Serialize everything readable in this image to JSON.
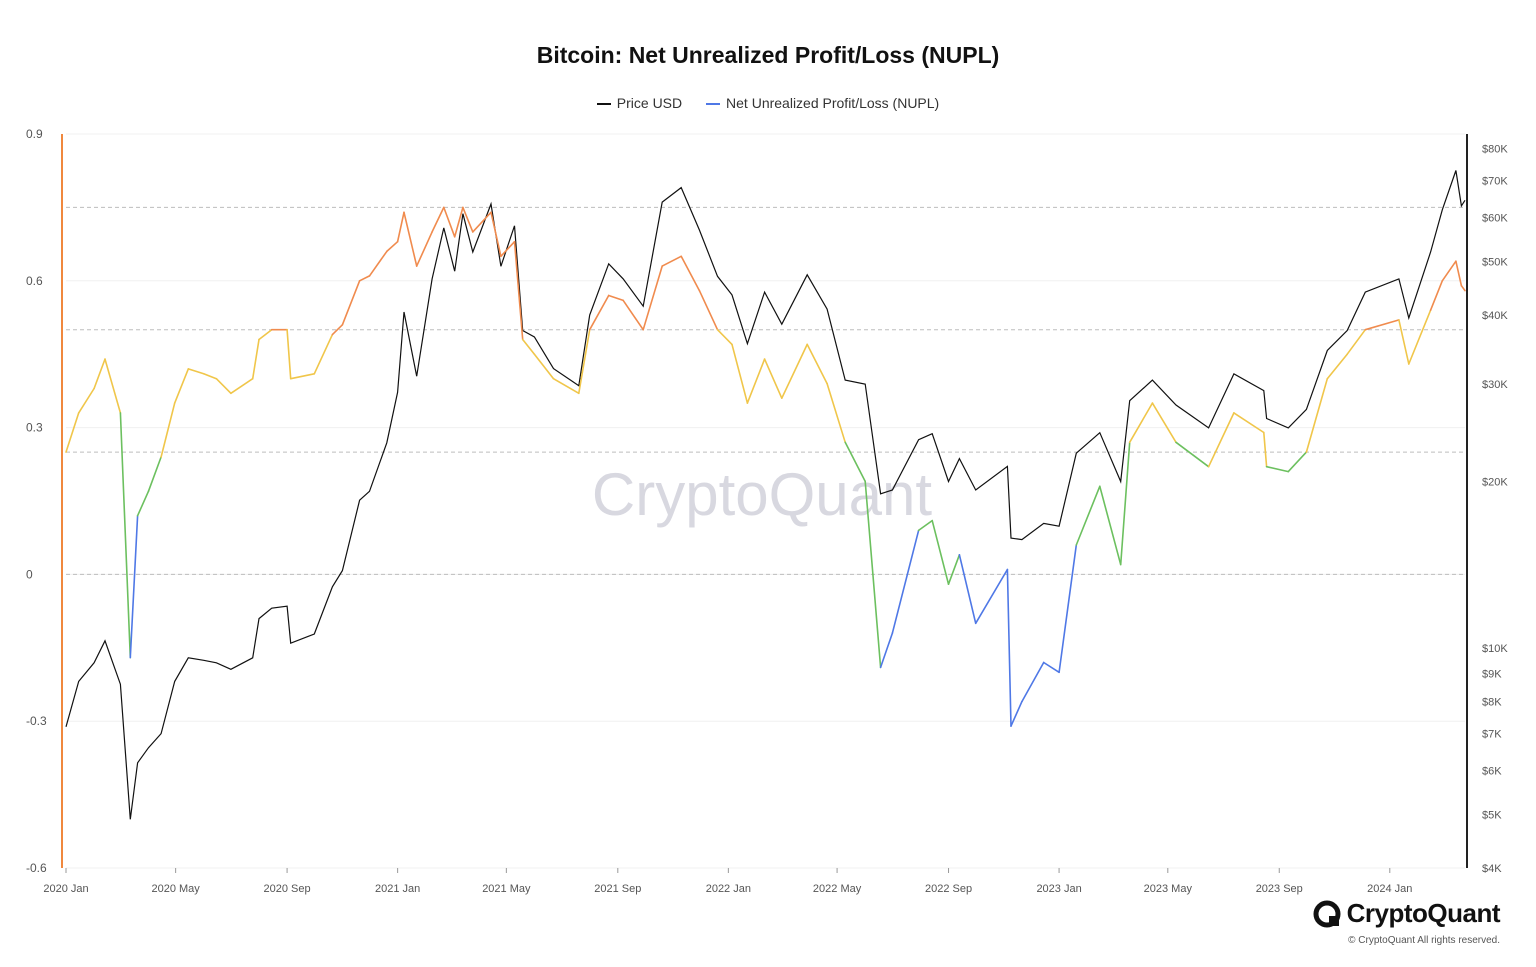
{
  "chart_data": {
    "type": "line",
    "title": "Bitcoin: Net Unrealized Profit/Loss (NUPL)",
    "legend": [
      "Price USD",
      "Net Unrealized Profit/Loss (NUPL)"
    ],
    "legend_placement": "top-center",
    "x_axis": {
      "tick_labels": [
        "2020 Jan",
        "2020 May",
        "2020 Sep",
        "2021 Jan",
        "2021 May",
        "2021 Sep",
        "2022 Jan",
        "2022 May",
        "2022 Sep",
        "2023 Jan",
        "2023 May",
        "2023 Sep",
        "2024 Jan"
      ],
      "range": [
        "2020-01-01",
        "2024-03-24"
      ]
    },
    "y_left": {
      "tick_labels": [
        "0.9",
        "0.6",
        "0.3",
        "0",
        "-0.3",
        "-0.6"
      ],
      "range": [
        -0.6,
        0.9
      ]
    },
    "y_right": {
      "scale": "log",
      "tick_labels": [
        "$80K",
        "$70K",
        "$60K",
        "$50K",
        "$40K",
        "$30K",
        "$20K",
        "$10K",
        "$9K",
        "$8K",
        "$7K",
        "$6K",
        "$5K",
        "$4K"
      ],
      "range": [
        4000,
        85000
      ]
    },
    "reference_lines_nupl": [
      0.75,
      0.5,
      0.25,
      0
    ],
    "zone_colors": {
      "capitulation": "#4f78e6",
      "hope_fear": "#6cc05f",
      "optimism_anxiety": "#f0c64a",
      "belief_denial": "#f08b4e",
      "euphoria_greed": "#f08b4e"
    },
    "series": [
      {
        "name": "Price USD",
        "color": "#111111",
        "points": [
          [
            "2020-01-01",
            7200
          ],
          [
            "2020-01-15",
            8700
          ],
          [
            "2020-02-01",
            9400
          ],
          [
            "2020-02-13",
            10300
          ],
          [
            "2020-03-01",
            8600
          ],
          [
            "2020-03-12",
            4900
          ],
          [
            "2020-03-20",
            6200
          ],
          [
            "2020-04-01",
            6600
          ],
          [
            "2020-04-15",
            7000
          ],
          [
            "2020-04-30",
            8700
          ],
          [
            "2020-05-15",
            9600
          ],
          [
            "2020-06-01",
            9500
          ],
          [
            "2020-06-15",
            9400
          ],
          [
            "2020-07-01",
            9150
          ],
          [
            "2020-07-25",
            9600
          ],
          [
            "2020-08-01",
            11300
          ],
          [
            "2020-08-15",
            11800
          ],
          [
            "2020-09-01",
            11900
          ],
          [
            "2020-09-05",
            10200
          ],
          [
            "2020-10-01",
            10600
          ],
          [
            "2020-10-21",
            12900
          ],
          [
            "2020-11-01",
            13800
          ],
          [
            "2020-11-20",
            18500
          ],
          [
            "2020-12-01",
            19200
          ],
          [
            "2020-12-20",
            23500
          ],
          [
            "2021-01-01",
            29000
          ],
          [
            "2021-01-08",
            40500
          ],
          [
            "2021-01-22",
            31000
          ],
          [
            "2021-02-08",
            46500
          ],
          [
            "2021-02-21",
            57500
          ],
          [
            "2021-03-05",
            48000
          ],
          [
            "2021-03-14",
            61000
          ],
          [
            "2021-03-25",
            52000
          ],
          [
            "2021-04-14",
            63500
          ],
          [
            "2021-04-25",
            49000
          ],
          [
            "2021-05-10",
            58000
          ],
          [
            "2021-05-19",
            37500
          ],
          [
            "2021-06-01",
            36500
          ],
          [
            "2021-06-22",
            32000
          ],
          [
            "2021-07-20",
            29800
          ],
          [
            "2021-08-01",
            40000
          ],
          [
            "2021-08-22",
            49500
          ],
          [
            "2021-09-07",
            46500
          ],
          [
            "2021-09-29",
            41500
          ],
          [
            "2021-10-20",
            64000
          ],
          [
            "2021-11-10",
            68000
          ],
          [
            "2021-11-30",
            57000
          ],
          [
            "2021-12-20",
            47000
          ],
          [
            "2022-01-05",
            43500
          ],
          [
            "2022-01-22",
            35500
          ],
          [
            "2022-02-10",
            44000
          ],
          [
            "2022-03-01",
            38500
          ],
          [
            "2022-03-29",
            47300
          ],
          [
            "2022-04-20",
            41000
          ],
          [
            "2022-05-10",
            30500
          ],
          [
            "2022-06-01",
            30000
          ],
          [
            "2022-06-18",
            19000
          ],
          [
            "2022-07-01",
            19300
          ],
          [
            "2022-07-30",
            23800
          ],
          [
            "2022-08-14",
            24400
          ],
          [
            "2022-09-01",
            20000
          ],
          [
            "2022-09-13",
            22000
          ],
          [
            "2022-10-01",
            19300
          ],
          [
            "2022-11-05",
            21300
          ],
          [
            "2022-11-09",
            15800
          ],
          [
            "2022-11-21",
            15700
          ],
          [
            "2022-12-15",
            16800
          ],
          [
            "2023-01-01",
            16600
          ],
          [
            "2023-01-20",
            22500
          ],
          [
            "2023-02-15",
            24500
          ],
          [
            "2023-03-10",
            20000
          ],
          [
            "2023-03-20",
            28000
          ],
          [
            "2023-04-14",
            30500
          ],
          [
            "2023-05-10",
            27500
          ],
          [
            "2023-06-15",
            25000
          ],
          [
            "2023-07-13",
            31300
          ],
          [
            "2023-08-15",
            29200
          ],
          [
            "2023-08-18",
            26000
          ],
          [
            "2023-09-11",
            25000
          ],
          [
            "2023-10-01",
            27000
          ],
          [
            "2023-10-24",
            34500
          ],
          [
            "2023-11-15",
            37500
          ],
          [
            "2023-12-05",
            44000
          ],
          [
            "2024-01-11",
            46500
          ],
          [
            "2024-01-22",
            39500
          ],
          [
            "2024-02-15",
            52000
          ],
          [
            "2024-02-28",
            62000
          ],
          [
            "2024-03-14",
            73000
          ],
          [
            "2024-03-20",
            63000
          ],
          [
            "2024-03-24",
            64500
          ]
        ]
      },
      {
        "name": "Net Unrealized Profit/Loss (NUPL)",
        "color": "#4f78e6",
        "points": [
          [
            "2020-01-01",
            0.25
          ],
          [
            "2020-01-15",
            0.33
          ],
          [
            "2020-02-01",
            0.38
          ],
          [
            "2020-02-13",
            0.44
          ],
          [
            "2020-03-01",
            0.33
          ],
          [
            "2020-03-12",
            -0.17
          ],
          [
            "2020-03-20",
            0.12
          ],
          [
            "2020-04-01",
            0.17
          ],
          [
            "2020-04-15",
            0.24
          ],
          [
            "2020-04-30",
            0.35
          ],
          [
            "2020-05-15",
            0.42
          ],
          [
            "2020-06-01",
            0.41
          ],
          [
            "2020-06-15",
            0.4
          ],
          [
            "2020-07-01",
            0.37
          ],
          [
            "2020-07-25",
            0.4
          ],
          [
            "2020-08-01",
            0.48
          ],
          [
            "2020-08-15",
            0.5
          ],
          [
            "2020-09-01",
            0.5
          ],
          [
            "2020-09-05",
            0.4
          ],
          [
            "2020-10-01",
            0.41
          ],
          [
            "2020-10-21",
            0.49
          ],
          [
            "2020-11-01",
            0.51
          ],
          [
            "2020-11-20",
            0.6
          ],
          [
            "2020-12-01",
            0.61
          ],
          [
            "2020-12-20",
            0.66
          ],
          [
            "2021-01-01",
            0.68
          ],
          [
            "2021-01-08",
            0.74
          ],
          [
            "2021-01-22",
            0.63
          ],
          [
            "2021-02-08",
            0.7
          ],
          [
            "2021-02-21",
            0.75
          ],
          [
            "2021-03-05",
            0.69
          ],
          [
            "2021-03-14",
            0.75
          ],
          [
            "2021-03-25",
            0.7
          ],
          [
            "2021-04-14",
            0.74
          ],
          [
            "2021-04-25",
            0.65
          ],
          [
            "2021-05-10",
            0.68
          ],
          [
            "2021-05-19",
            0.48
          ],
          [
            "2021-06-01",
            0.45
          ],
          [
            "2021-06-22",
            0.4
          ],
          [
            "2021-07-20",
            0.37
          ],
          [
            "2021-08-01",
            0.5
          ],
          [
            "2021-08-22",
            0.57
          ],
          [
            "2021-09-07",
            0.56
          ],
          [
            "2021-09-29",
            0.5
          ],
          [
            "2021-10-20",
            0.63
          ],
          [
            "2021-11-10",
            0.65
          ],
          [
            "2021-11-30",
            0.58
          ],
          [
            "2021-12-20",
            0.5
          ],
          [
            "2022-01-05",
            0.47
          ],
          [
            "2022-01-22",
            0.35
          ],
          [
            "2022-02-10",
            0.44
          ],
          [
            "2022-03-01",
            0.36
          ],
          [
            "2022-03-29",
            0.47
          ],
          [
            "2022-04-20",
            0.39
          ],
          [
            "2022-05-10",
            0.27
          ],
          [
            "2022-06-01",
            0.19
          ],
          [
            "2022-06-18",
            -0.19
          ],
          [
            "2022-07-01",
            -0.12
          ],
          [
            "2022-07-30",
            0.09
          ],
          [
            "2022-08-14",
            0.11
          ],
          [
            "2022-09-01",
            -0.02
          ],
          [
            "2022-09-13",
            0.04
          ],
          [
            "2022-10-01",
            -0.1
          ],
          [
            "2022-11-05",
            0.01
          ],
          [
            "2022-11-09",
            -0.31
          ],
          [
            "2022-11-21",
            -0.26
          ],
          [
            "2022-12-15",
            -0.18
          ],
          [
            "2023-01-01",
            -0.2
          ],
          [
            "2023-01-20",
            0.06
          ],
          [
            "2023-02-15",
            0.18
          ],
          [
            "2023-03-10",
            0.02
          ],
          [
            "2023-03-20",
            0.27
          ],
          [
            "2023-04-14",
            0.35
          ],
          [
            "2023-05-10",
            0.27
          ],
          [
            "2023-06-15",
            0.22
          ],
          [
            "2023-07-13",
            0.33
          ],
          [
            "2023-08-15",
            0.29
          ],
          [
            "2023-08-18",
            0.22
          ],
          [
            "2023-09-11",
            0.21
          ],
          [
            "2023-10-01",
            0.25
          ],
          [
            "2023-10-24",
            0.4
          ],
          [
            "2023-11-15",
            0.45
          ],
          [
            "2023-12-05",
            0.5
          ],
          [
            "2024-01-11",
            0.52
          ],
          [
            "2024-01-22",
            0.43
          ],
          [
            "2024-02-15",
            0.54
          ],
          [
            "2024-02-28",
            0.6
          ],
          [
            "2024-03-14",
            0.64
          ],
          [
            "2024-03-20",
            0.59
          ],
          [
            "2024-03-24",
            0.58
          ]
        ]
      }
    ]
  },
  "watermark": "CryptoQuant",
  "brand": {
    "name": "CryptoQuant",
    "copyright": "© CryptoQuant All rights reserved."
  }
}
